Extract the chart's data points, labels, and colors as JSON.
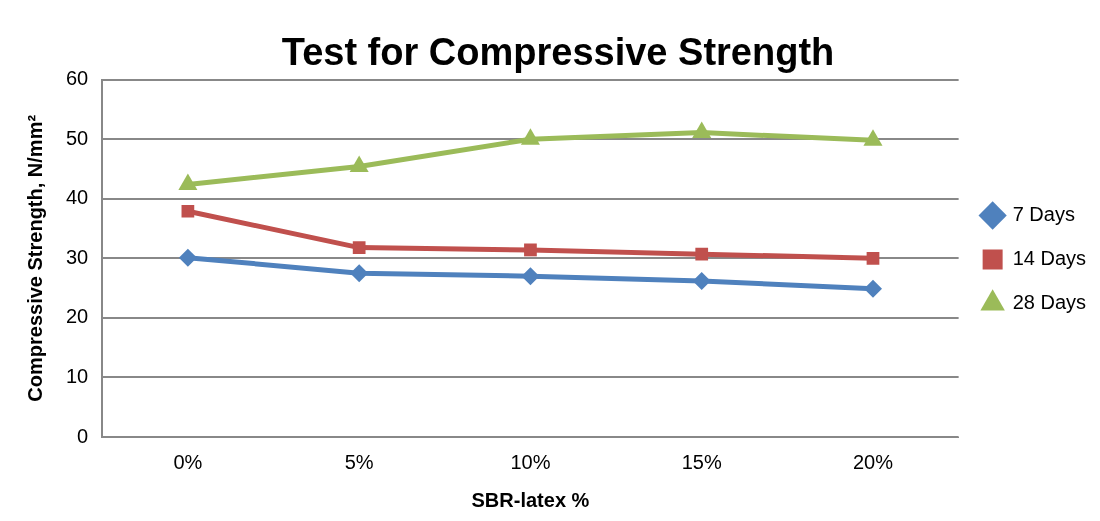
{
  "chart_data": {
    "type": "line",
    "title": "Test for Compressive Strength",
    "xlabel": "SBR-latex %",
    "ylabel": "Compressive Strength, N/mm²",
    "categories": [
      "0%",
      "5%",
      "10%",
      "15%",
      "20%"
    ],
    "series": [
      {
        "name": "7 Days",
        "color": "#4f81bd",
        "marker": "diamond",
        "values": [
          30.1,
          27.5,
          27.0,
          26.2,
          24.9
        ]
      },
      {
        "name": "14 Days",
        "color": "#c0504d",
        "marker": "square",
        "values": [
          37.9,
          31.8,
          31.4,
          30.7,
          30.0
        ]
      },
      {
        "name": "28 Days",
        "color": "#9bbb59",
        "marker": "triangle",
        "values": [
          42.4,
          45.4,
          50.0,
          51.1,
          49.8
        ]
      }
    ],
    "ylim": [
      0,
      60
    ],
    "yticks": [
      0,
      10,
      20,
      30,
      40,
      50,
      60
    ],
    "grid": "y",
    "legend": "right",
    "line_style": "solid"
  }
}
